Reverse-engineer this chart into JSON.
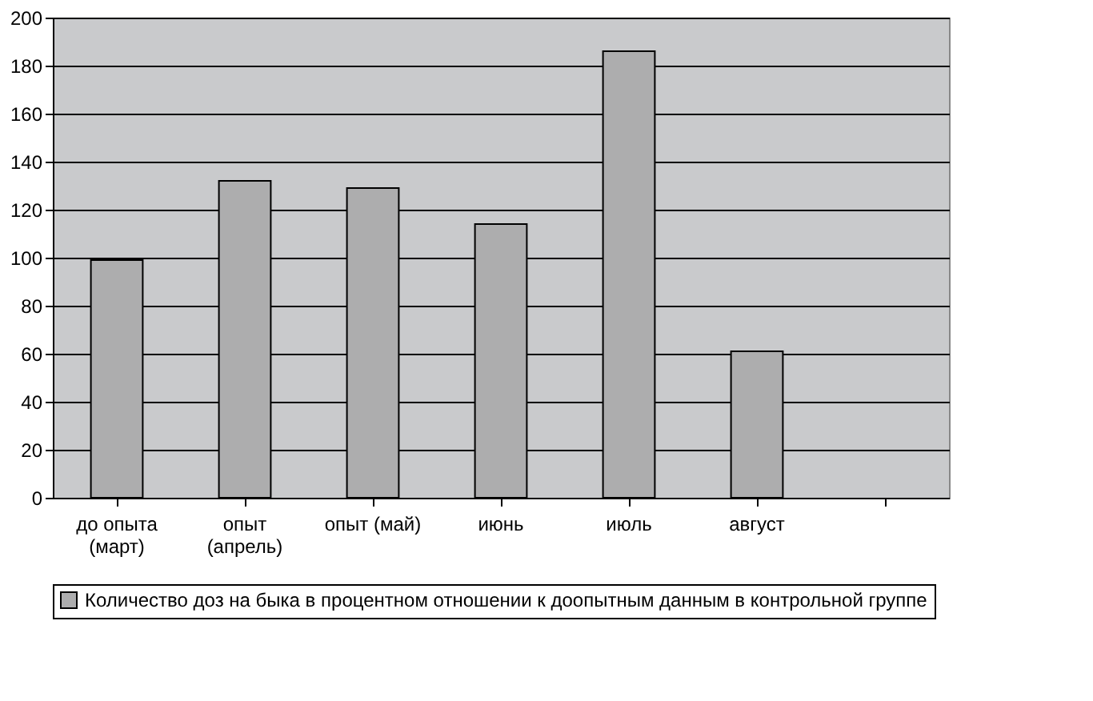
{
  "chart_data": {
    "type": "bar",
    "categories": [
      "до опыта\n(март)",
      "опыт\n(апрель)",
      "опыт (май)",
      "июнь",
      "июль",
      "август",
      null
    ],
    "series": [
      {
        "name": "Количество доз на быка в процентном отношении к доопытным данным в контрольной группе",
        "color": "#adadae",
        "values": [
          99,
          132,
          129,
          114,
          186,
          61,
          null
        ]
      }
    ],
    "ylim": [
      0,
      200
    ],
    "yticks": [
      0,
      20,
      40,
      60,
      80,
      100,
      120,
      140,
      160,
      180,
      200
    ],
    "grid": "y",
    "legend": "bottom"
  }
}
